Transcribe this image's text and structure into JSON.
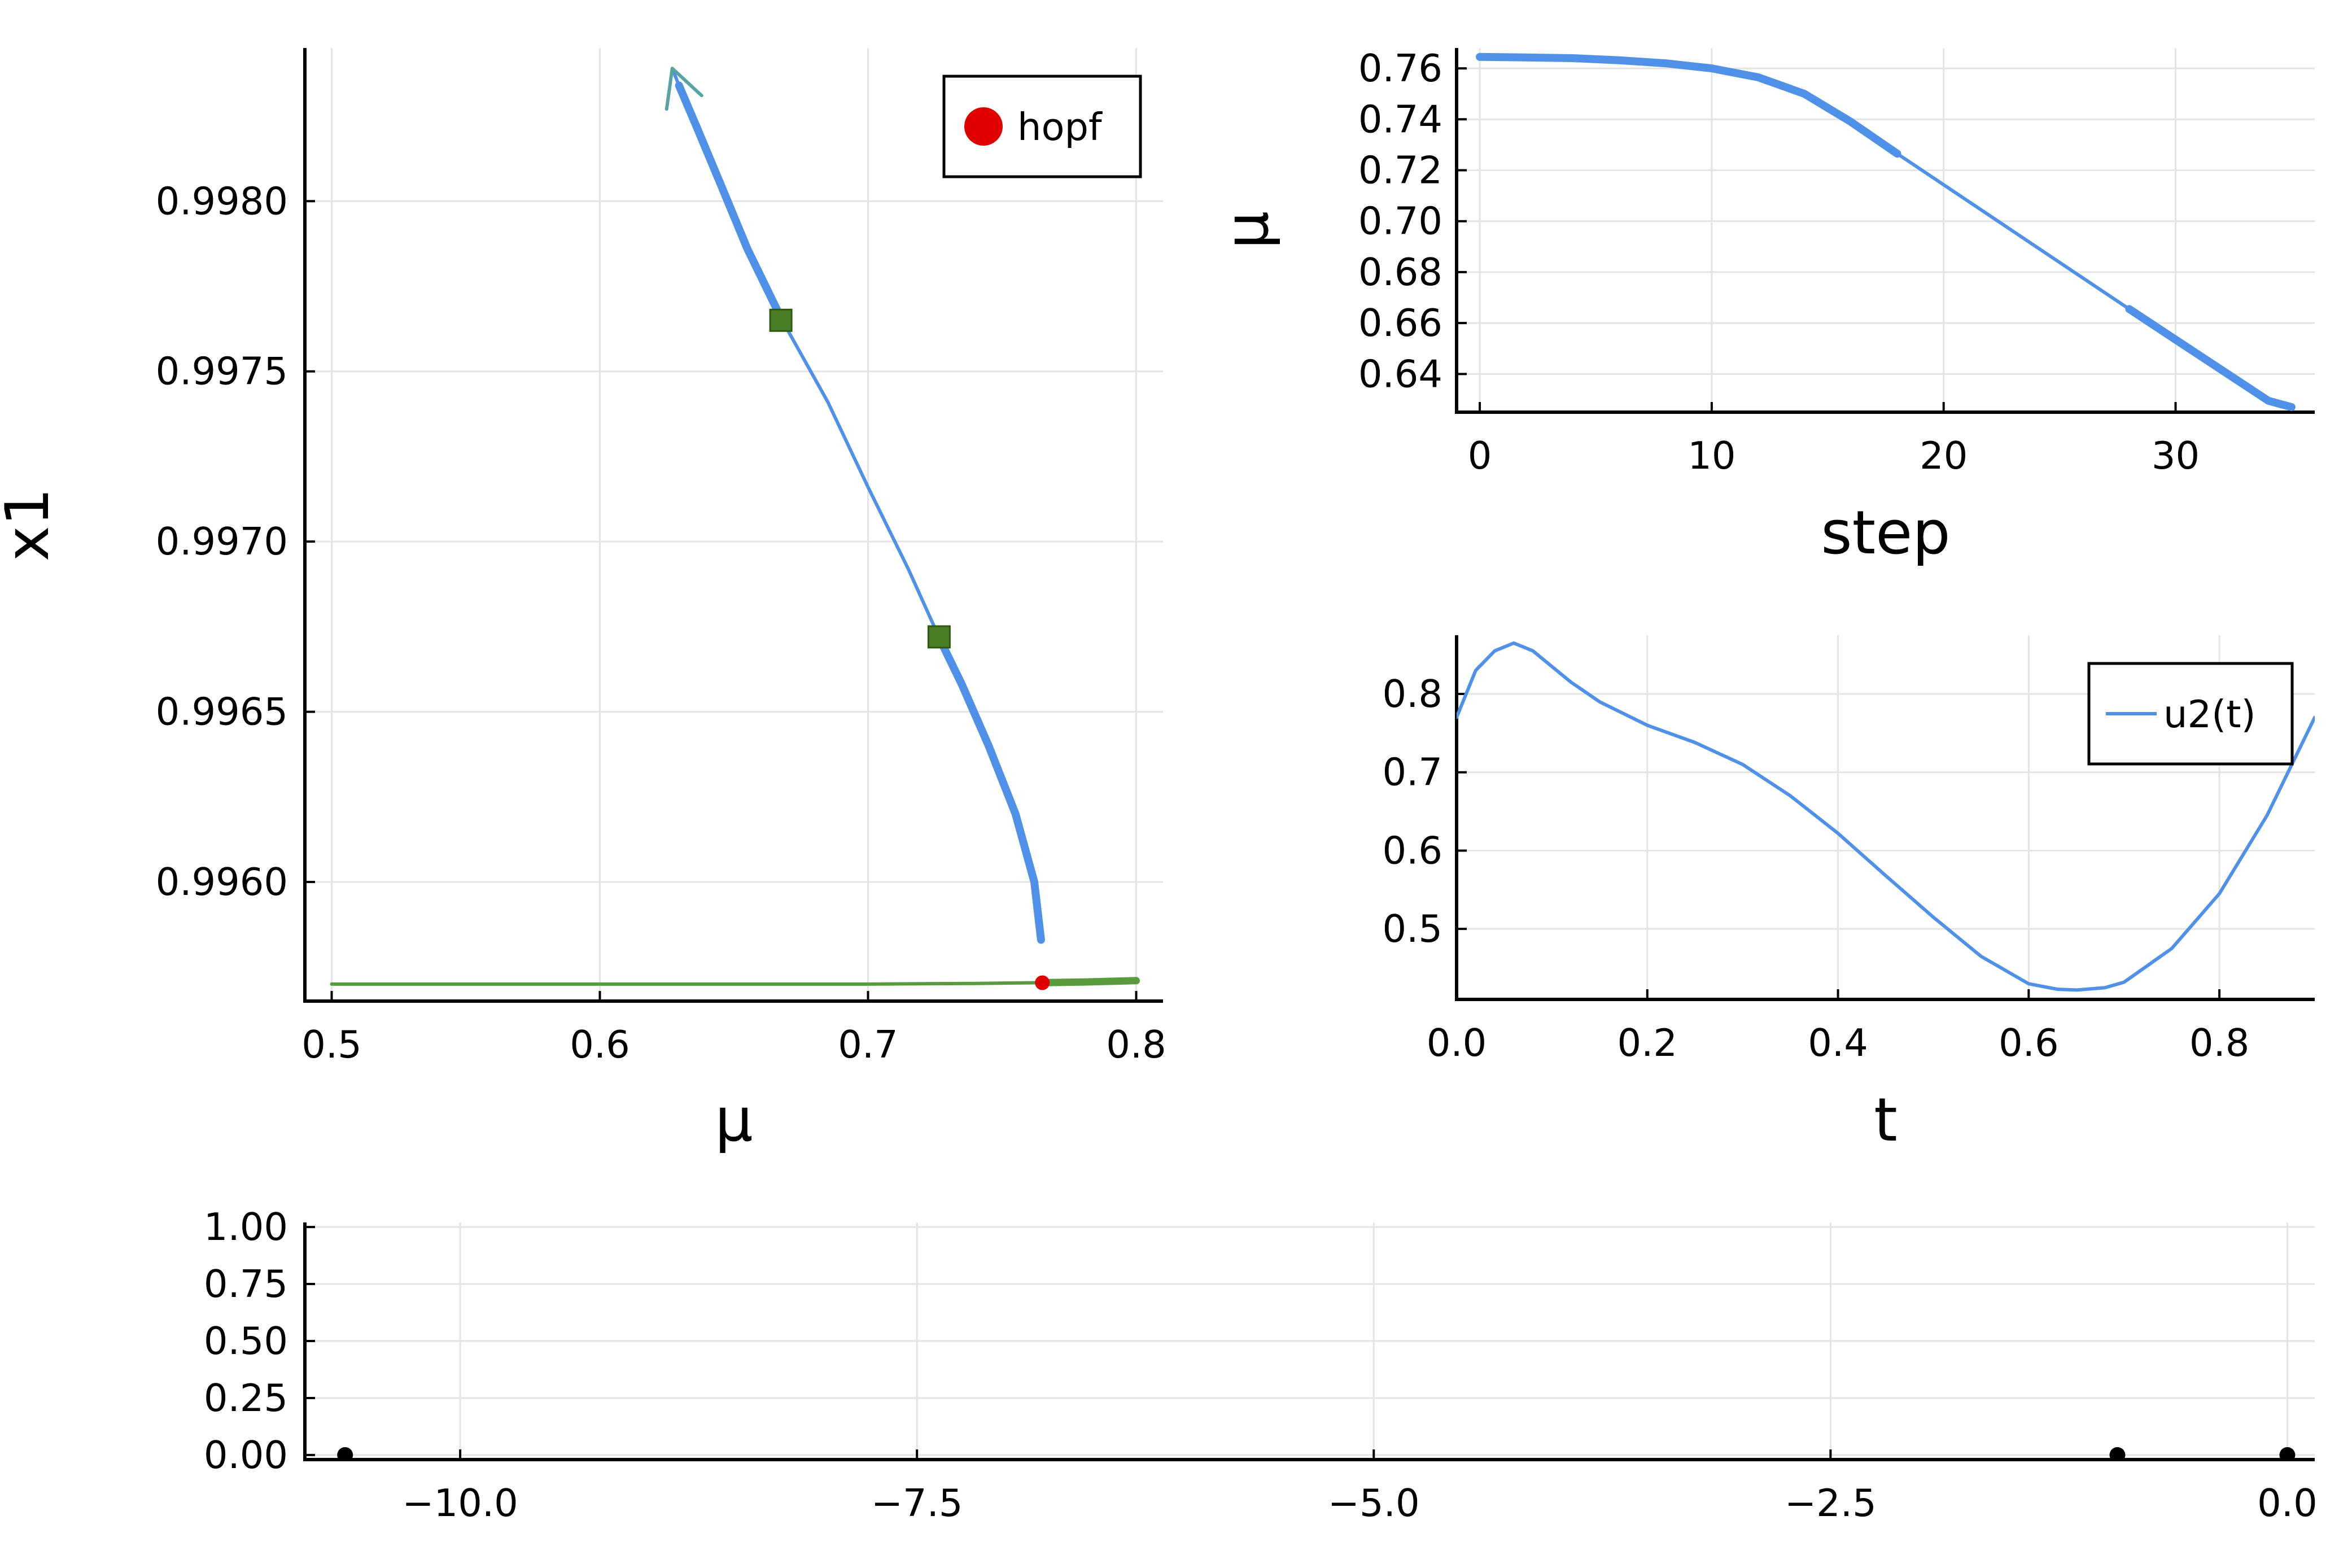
{
  "colors": {
    "blue": "#4f90e8",
    "green": "#5a9a3e",
    "green_marker": "#4a7d24",
    "red": "#e00000",
    "arrow": "#5aa3a3",
    "black": "#000000",
    "grid": "#e4e4e4"
  },
  "chart_data": [
    {
      "id": "bifurcation",
      "type": "line",
      "xlabel": "μ",
      "ylabel": "x1",
      "xlim": [
        0.49,
        0.81
      ],
      "ylim": [
        0.99565,
        0.99845
      ],
      "xticks": [
        0.5,
        0.6,
        0.7,
        0.8
      ],
      "xtick_labels": [
        "0.5",
        "0.6",
        "0.7",
        "0.8"
      ],
      "yticks": [
        0.996,
        0.9965,
        0.997,
        0.9975,
        0.998
      ],
      "ytick_labels": [
        "0.9960",
        "0.9965",
        "0.9970",
        "0.9975",
        "0.9980"
      ],
      "grid": true,
      "legend": {
        "position": "top-right",
        "entries": [
          {
            "label": "hopf",
            "marker": "circle",
            "color": "#e00000"
          }
        ]
      },
      "series": [
        {
          "kind": "branch",
          "color": "#5a9a3e",
          "x": [
            0.5,
            0.6,
            0.7,
            0.74,
            0.765,
            0.78,
            0.8
          ],
          "y": [
            0.9957,
            0.9957,
            0.9957,
            0.995702,
            0.995704,
            0.995706,
            0.99571
          ],
          "stable_until_x": 0.765
        },
        {
          "kind": "periodic",
          "color": "#4f90e8",
          "x": [
            0.7645,
            0.762,
            0.755,
            0.745,
            0.735,
            0.727,
            0.715,
            0.7,
            0.685,
            0.668,
            0.655,
            0.645,
            0.636,
            0.6295,
            0.627
          ],
          "y": [
            0.99583,
            0.996,
            0.9962,
            0.9964,
            0.99658,
            0.99671,
            0.99692,
            0.99716,
            0.99741,
            0.99765,
            0.99786,
            0.99805,
            0.99822,
            0.99834,
            0.99839
          ],
          "thick_segments": [
            [
              0.7645,
              0.727
            ],
            [
              0.668,
              0.6295
            ]
          ]
        }
      ],
      "markers": [
        {
          "label": "hopf",
          "x": 0.765,
          "y": 0.995704,
          "shape": "circle",
          "color": "#e00000"
        },
        {
          "x": 0.6675,
          "y": 0.99765,
          "shape": "square",
          "color": "#4a7d24"
        },
        {
          "x": 0.7265,
          "y": 0.99672,
          "shape": "square",
          "color": "#4a7d24"
        }
      ],
      "arrow": {
        "at_x": 0.627,
        "at_y": 0.99839,
        "color": "#5aa3a3"
      }
    },
    {
      "id": "mu-vs-step",
      "type": "line",
      "xlabel": "step",
      "ylabel": "μ",
      "xlim": [
        -1,
        36
      ],
      "ylim": [
        0.625,
        0.768
      ],
      "xticks": [
        0,
        10,
        20,
        30
      ],
      "xtick_labels": [
        "0",
        "10",
        "20",
        "30"
      ],
      "yticks": [
        0.64,
        0.66,
        0.68,
        0.7,
        0.72,
        0.74,
        0.76
      ],
      "ytick_labels": [
        "0.64",
        "0.66",
        "0.68",
        "0.70",
        "0.72",
        "0.74",
        "0.76"
      ],
      "grid": true,
      "series": [
        {
          "color": "#4f90e8",
          "x": [
            0,
            2,
            4,
            6,
            8,
            10,
            12,
            14,
            16,
            18,
            20,
            22,
            24,
            26,
            28,
            30,
            32,
            34,
            35
          ],
          "y": [
            0.7645,
            0.7643,
            0.764,
            0.7632,
            0.762,
            0.76,
            0.7565,
            0.75,
            0.739,
            0.7265,
            0.7143,
            0.7021,
            0.6899,
            0.6777,
            0.6655,
            0.6535,
            0.6415,
            0.6295,
            0.627
          ],
          "thick_segments": [
            [
              0,
              18
            ],
            [
              28,
              35
            ]
          ]
        }
      ]
    },
    {
      "id": "u2-vs-t",
      "type": "line",
      "xlabel": "t",
      "ylabel": "",
      "xlim": [
        0,
        0.9
      ],
      "ylim": [
        0.41,
        0.875
      ],
      "xticks": [
        0,
        0.2,
        0.4,
        0.6,
        0.8
      ],
      "xtick_labels": [
        "0.0",
        "0.2",
        "0.4",
        "0.6",
        "0.8"
      ],
      "yticks": [
        0.5,
        0.6,
        0.7,
        0.8
      ],
      "ytick_labels": [
        "0.5",
        "0.6",
        "0.7",
        "0.8"
      ],
      "grid": true,
      "legend": {
        "position": "top-right",
        "entries": [
          {
            "label": "u2(t)",
            "marker": "line",
            "color": "#4f90e8"
          }
        ]
      },
      "series": [
        {
          "name": "u2(t)",
          "color": "#4f90e8",
          "x": [
            0,
            0.02,
            0.04,
            0.06,
            0.08,
            0.1,
            0.12,
            0.15,
            0.2,
            0.25,
            0.3,
            0.35,
            0.4,
            0.45,
            0.5,
            0.55,
            0.6,
            0.63,
            0.65,
            0.68,
            0.7,
            0.75,
            0.8,
            0.85,
            0.9
          ],
          "y": [
            0.77,
            0.83,
            0.855,
            0.865,
            0.855,
            0.835,
            0.815,
            0.79,
            0.76,
            0.738,
            0.71,
            0.67,
            0.622,
            0.568,
            0.515,
            0.465,
            0.43,
            0.423,
            0.422,
            0.425,
            0.432,
            0.475,
            0.545,
            0.645,
            0.77
          ]
        }
      ]
    },
    {
      "id": "eigenvalues",
      "type": "scatter",
      "xlabel": "",
      "ylabel": "",
      "xlim": [
        -10.85,
        0.15
      ],
      "ylim": [
        -0.02,
        1.02
      ],
      "xticks": [
        -10,
        -7.5,
        -5,
        -2.5,
        0
      ],
      "xtick_labels": [
        "−10.0",
        "−7.5",
        "−5.0",
        "−2.5",
        "0.0"
      ],
      "yticks": [
        0,
        0.25,
        0.5,
        0.75,
        1
      ],
      "ytick_labels": [
        "0.00",
        "0.25",
        "0.50",
        "0.75",
        "1.00"
      ],
      "grid": true,
      "series": [
        {
          "color": "#000000",
          "x": [
            -10.63,
            -0.93,
            0.0
          ],
          "y": [
            0,
            0,
            0
          ]
        }
      ]
    }
  ]
}
